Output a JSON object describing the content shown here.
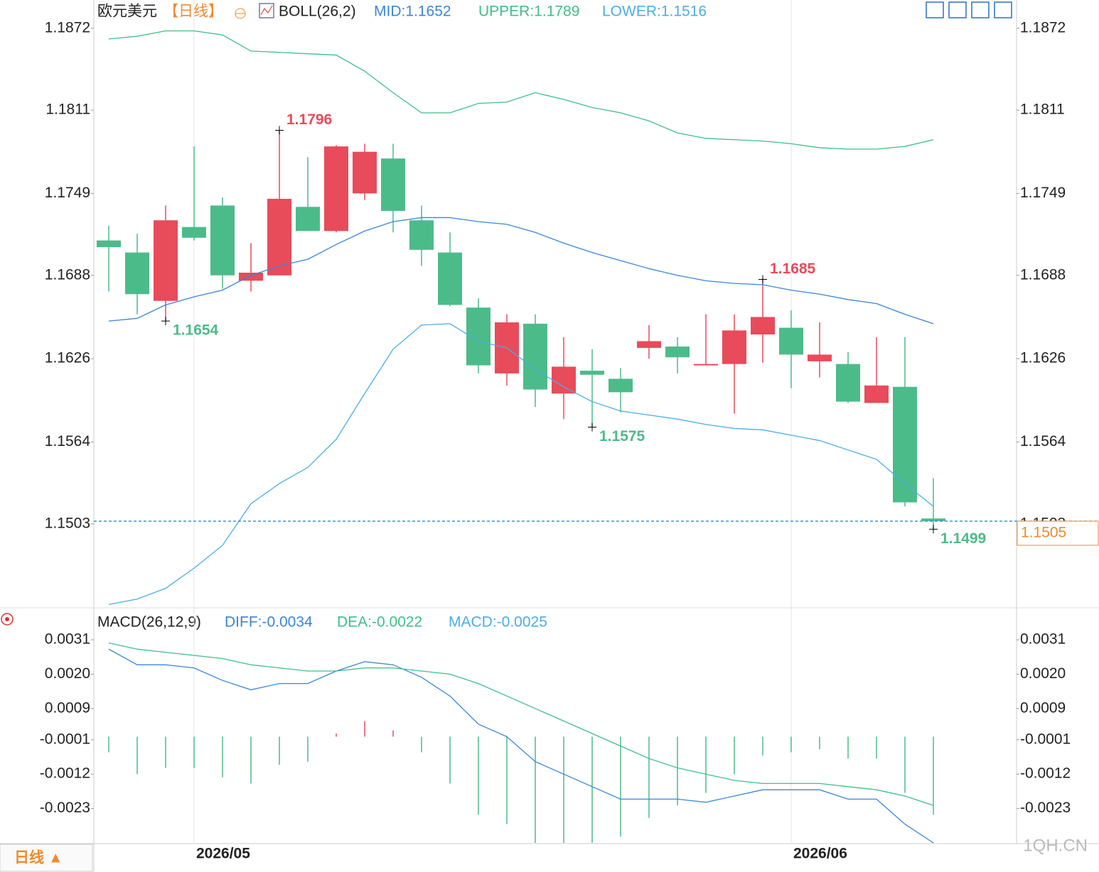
{
  "chart_data": [
    {
      "type": "candlestick",
      "title": "欧元美元",
      "period": "【日线】",
      "indicator": "BOLL(26,2)",
      "categories": [
        null,
        null,
        null,
        "2026/05",
        null,
        null,
        null,
        null,
        null,
        null,
        null,
        null,
        null,
        null,
        null,
        null,
        null,
        null,
        null,
        null,
        null,
        null,
        null,
        null,
        "2026/06",
        null,
        null,
        null,
        null,
        null
      ],
      "open": [
        1.1714,
        1.1705,
        1.1669,
        1.1724,
        1.174,
        1.1684,
        1.1688,
        1.1739,
        1.1721,
        1.1749,
        1.1775,
        1.1729,
        1.1705,
        1.1664,
        1.1615,
        1.1652,
        1.16,
        1.1617,
        1.1611,
        1.1634,
        1.1635,
        1.1621,
        1.1622,
        1.1644,
        1.1649,
        1.1624,
        1.1622,
        1.1593,
        1.1605,
        1.1507
      ],
      "high": [
        1.1725,
        1.1719,
        1.174,
        1.1784,
        1.1746,
        1.1712,
        1.1796,
        1.1776,
        1.1785,
        1.1786,
        1.1786,
        1.174,
        1.172,
        1.1671,
        1.1659,
        1.1659,
        1.1642,
        1.1633,
        1.1619,
        1.1651,
        1.1642,
        1.1659,
        1.1659,
        1.1685,
        1.1662,
        1.1653,
        1.1631,
        1.1642,
        1.1642,
        1.1537
      ],
      "low": [
        1.1676,
        1.1659,
        1.1654,
        1.1714,
        1.1678,
        1.1676,
        1.1688,
        1.1721,
        1.172,
        1.1744,
        1.172,
        1.1695,
        1.1665,
        1.1615,
        1.1606,
        1.159,
        1.1581,
        1.1575,
        1.1586,
        1.1626,
        1.1615,
        1.1621,
        1.1585,
        1.1623,
        1.1604,
        1.1612,
        1.1593,
        1.1593,
        1.1516,
        1.1499
      ],
      "close": [
        1.1709,
        1.1674,
        1.1729,
        1.1716,
        1.1688,
        1.169,
        1.1745,
        1.1721,
        1.1784,
        1.178,
        1.1736,
        1.1707,
        1.1666,
        1.1621,
        1.1653,
        1.1603,
        1.162,
        1.1614,
        1.1601,
        1.1639,
        1.1627,
        1.1622,
        1.1647,
        1.1657,
        1.1629,
        1.1629,
        1.1594,
        1.1606,
        1.1519,
        1.1505
      ],
      "up_color": "#e84b5a",
      "down_color": "#4cbb8a",
      "series": [
        {
          "name": "MID:1.1652",
          "color": "#3a86d8",
          "values": [
            1.1654,
            1.1656,
            1.1666,
            1.1672,
            1.1677,
            1.1688,
            1.1695,
            1.17,
            1.1711,
            1.1721,
            1.1728,
            1.1731,
            1.1731,
            1.1728,
            1.1726,
            1.172,
            1.1712,
            1.1705,
            1.1699,
            1.1693,
            1.1688,
            1.1684,
            1.1682,
            1.1681,
            1.1677,
            1.1674,
            1.167,
            1.1667,
            1.1659,
            1.1652
          ]
        },
        {
          "name": "UPPER:1.1789",
          "color": "#3fbf8a",
          "values": [
            1.1864,
            1.1866,
            1.187,
            1.187,
            1.1867,
            1.1855,
            1.1854,
            1.1853,
            1.1852,
            1.184,
            1.1824,
            1.1809,
            1.1809,
            1.1816,
            1.1817,
            1.1824,
            1.1819,
            1.1813,
            1.1809,
            1.1803,
            1.1794,
            1.179,
            1.1789,
            1.1788,
            1.1786,
            1.1783,
            1.1782,
            1.1782,
            1.1784,
            1.1789
          ]
        },
        {
          "name": "LOWER:1.1516",
          "color": "#4aaee6",
          "values": [
            1.1443,
            1.1447,
            1.1455,
            1.147,
            1.1487,
            1.1518,
            1.1533,
            1.1545,
            1.1566,
            1.16,
            1.1633,
            1.1651,
            1.1652,
            1.1639,
            1.1634,
            1.1618,
            1.1605,
            1.1594,
            1.1587,
            1.1584,
            1.1581,
            1.1577,
            1.1574,
            1.1573,
            1.1569,
            1.1565,
            1.1558,
            1.1551,
            1.1533,
            1.1516
          ]
        }
      ],
      "annotations": [
        {
          "value": 1.1796,
          "color": "#e84b5a"
        },
        {
          "value": 1.1654,
          "color": "#4cbb8a"
        },
        {
          "value": 1.1685,
          "color": "#e84b5a"
        },
        {
          "value": 1.1575,
          "color": "#4cbb8a"
        },
        {
          "value": 1.1499,
          "color": "#4cbb8a"
        }
      ],
      "last_price": {
        "value": 1.1505,
        "color": "#f08a2c",
        "line_color": "#2e86de"
      },
      "ylim": [
        1.1441,
        1.1893
      ],
      "yticks": [
        1.1872,
        1.1811,
        1.1749,
        1.1688,
        1.1626,
        1.1564,
        1.1503
      ]
    },
    {
      "type": "macd",
      "title": "MACD(26,12,9)",
      "series": [
        {
          "name": "DIFF:-0.0034",
          "color": "#3a86d8",
          "values": [
            0.0028,
            0.0023,
            0.0023,
            0.0022,
            0.0018,
            0.0015,
            0.0017,
            0.0017,
            0.0021,
            0.0024,
            0.0023,
            0.0019,
            0.0013,
            0.0004,
            0,
            -0.0008,
            -0.0012,
            -0.0016,
            -0.002,
            -0.002,
            -0.002,
            -0.0021,
            -0.0019,
            -0.0017,
            -0.0017,
            -0.0017,
            -0.002,
            -0.002,
            -0.0028,
            -0.0034
          ]
        },
        {
          "name": "DEA:-0.0022",
          "color": "#3fbf8a",
          "values": [
            0.003,
            0.0028,
            0.0027,
            0.0026,
            0.0025,
            0.0023,
            0.0022,
            0.0021,
            0.0021,
            0.0022,
            0.0022,
            0.0021,
            0.002,
            0.0017,
            0.0013,
            0.0009,
            0.0005,
            0.0001,
            -0.0003,
            -0.0007,
            -0.001,
            -0.0012,
            -0.0014,
            -0.0015,
            -0.0015,
            -0.0015,
            -0.0016,
            -0.0017,
            -0.0019,
            -0.0022
          ]
        }
      ],
      "histogram": {
        "name": "MACD:-0.0025",
        "color": "#4aaee6",
        "values": [
          -0.0005,
          -0.0012,
          -0.001,
          -0.001,
          -0.0013,
          -0.0015,
          -0.0009,
          -0.0008,
          0.0001,
          0.0005,
          0.0002,
          -0.0005,
          -0.0015,
          -0.0025,
          -0.0028,
          -0.0034,
          -0.0034,
          -0.0034,
          -0.0032,
          -0.0026,
          -0.0022,
          -0.0018,
          -0.0012,
          -0.0006,
          -0.0005,
          -0.0004,
          -0.0007,
          -0.0007,
          -0.0018,
          -0.0025
        ]
      },
      "ylim": [
        -0.0034,
        0.0041
      ],
      "yticks": [
        {
          "value": 0.0031,
          "label": "0.0031"
        },
        {
          "value": 0.002,
          "label": "0.0020"
        },
        {
          "value": 0.0009,
          "label": "0.0009"
        },
        {
          "value": -0.0001,
          "label": "-0.0001"
        },
        {
          "value": -0.0012,
          "label": "-0.0012"
        },
        {
          "value": -0.0023,
          "label": "-0.0023"
        }
      ]
    }
  ],
  "footer": {
    "period_button": "日线 ▲",
    "watermark": "1QH.CN"
  }
}
